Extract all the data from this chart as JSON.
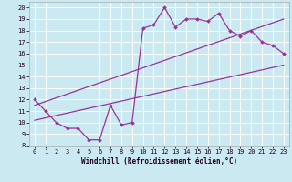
{
  "title": "",
  "xlabel": "Windchill (Refroidissement éolien,°C)",
  "bg_color": "#cbe9f0",
  "grid_color": "#ffffff",
  "line_color": "#993399",
  "xlim": [
    -0.5,
    23.5
  ],
  "ylim": [
    8,
    20.5
  ],
  "xticks": [
    0,
    1,
    2,
    3,
    4,
    5,
    6,
    7,
    8,
    9,
    10,
    11,
    12,
    13,
    14,
    15,
    16,
    17,
    18,
    19,
    20,
    21,
    22,
    23
  ],
  "yticks": [
    8,
    9,
    10,
    11,
    12,
    13,
    14,
    15,
    16,
    17,
    18,
    19,
    20
  ],
  "main_x": [
    0,
    1,
    2,
    3,
    4,
    5,
    6,
    7,
    8,
    9,
    10,
    11,
    12,
    13,
    14,
    15,
    16,
    17,
    18,
    19,
    20,
    21,
    22,
    23
  ],
  "main_y": [
    12.0,
    11.0,
    10.0,
    9.5,
    9.5,
    8.5,
    8.5,
    11.5,
    9.8,
    10.0,
    18.2,
    18.5,
    20.0,
    18.3,
    19.0,
    19.0,
    18.8,
    19.5,
    18.0,
    17.5,
    18.0,
    17.0,
    16.7,
    16.0
  ],
  "line2_x": [
    0,
    23
  ],
  "line2_y": [
    10.2,
    15.0
  ],
  "line3_x": [
    0,
    23
  ],
  "line3_y": [
    11.5,
    19.0
  ],
  "xlabel_fontsize": 5.5,
  "tick_fontsize": 5.0,
  "marker_size": 2.0,
  "linewidth": 0.9
}
